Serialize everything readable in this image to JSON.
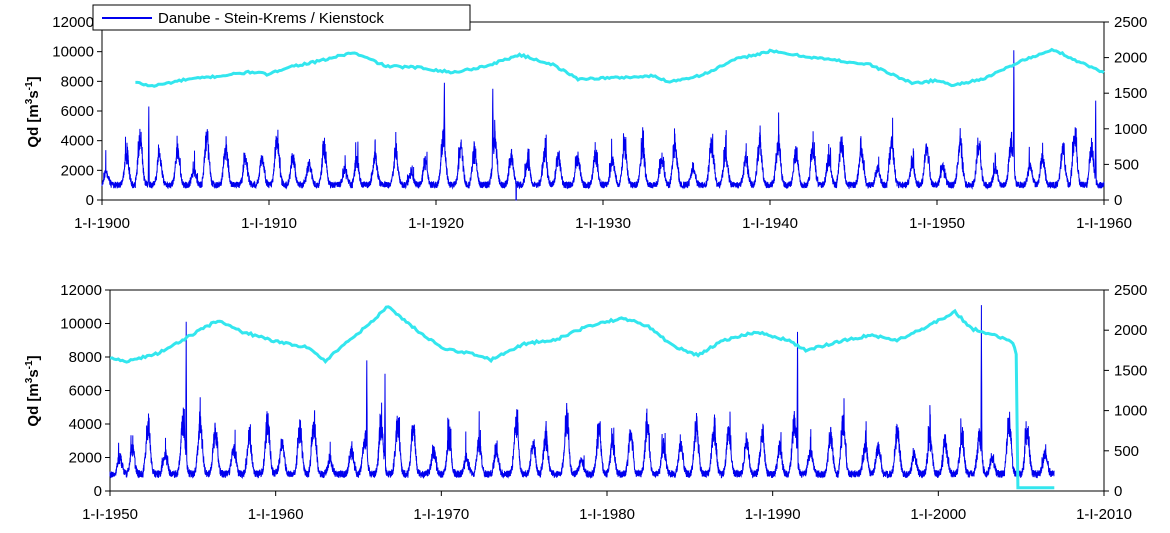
{
  "chart_data": [
    {
      "type": "line",
      "panel": "top",
      "xlabel": "",
      "ylabel": "Qd [m3s-1]",
      "ylabel_parts": {
        "base": "Qd  [m",
        "sup1": "3",
        "mid": "s",
        "sup2": "-1",
        "end": "]"
      },
      "x_range_years": [
        1900,
        1960
      ],
      "x_tick_labels": [
        "1-I-1900",
        "1-I-1910",
        "1-I-1920",
        "1-I-1930",
        "1-I-1940",
        "1-I-1950",
        "1-I-1960"
      ],
      "y_left_range": [
        0,
        12000
      ],
      "y_left_ticks": [
        "0",
        "2000",
        "4000",
        "6000",
        "8000",
        "10000",
        "12000"
      ],
      "y_right_range": [
        0,
        2500
      ],
      "y_right_ticks": [
        "0",
        "500",
        "1000",
        "1500",
        "2000",
        "2500"
      ],
      "grid": false,
      "legend": {
        "placement": "top-left",
        "entries": [
          "Danube - Stein-Krems / Kienstock"
        ]
      },
      "series": [
        {
          "name": "Danube - Stein-Krems / Kienstock",
          "axis": "left",
          "color": "#0000ee",
          "style": "daily discharge, strong annual cycle",
          "base_flow": 1300,
          "typical_annual_peak": 4200,
          "peaks": [
            {
              "x": 1902.8,
              "y": 6300
            },
            {
              "x": 1920.5,
              "y": 7900
            },
            {
              "x": 1923.4,
              "y": 7500
            },
            {
              "x": 1954.6,
              "y": 10100
            },
            {
              "x": 1959.5,
              "y": 6700
            }
          ],
          "minimum": {
            "x": 1924.8,
            "y": 0
          }
        },
        {
          "name": "",
          "axis": "right",
          "color": "#33e6ee",
          "style": "running mean",
          "points": [
            [
              1902.0,
              1650
            ],
            [
              1903.0,
              1600
            ],
            [
              1905.0,
              1690
            ],
            [
              1907.0,
              1740
            ],
            [
              1909.0,
              1800
            ],
            [
              1910.0,
              1760
            ],
            [
              1911.0,
              1860
            ],
            [
              1913.0,
              1950
            ],
            [
              1915.0,
              2070
            ],
            [
              1916.0,
              1980
            ],
            [
              1917.0,
              1880
            ],
            [
              1919.0,
              1860
            ],
            [
              1921.0,
              1790
            ],
            [
              1923.0,
              1880
            ],
            [
              1925.0,
              2040
            ],
            [
              1927.0,
              1900
            ],
            [
              1928.5,
              1700
            ],
            [
              1931.0,
              1720
            ],
            [
              1933.0,
              1740
            ],
            [
              1934.0,
              1660
            ],
            [
              1936.0,
              1760
            ],
            [
              1938.0,
              1980
            ],
            [
              1940.0,
              2090
            ],
            [
              1942.0,
              2020
            ],
            [
              1944.0,
              1960
            ],
            [
              1946.0,
              1900
            ],
            [
              1948.5,
              1640
            ],
            [
              1950.0,
              1680
            ],
            [
              1951.0,
              1610
            ],
            [
              1953.0,
              1720
            ],
            [
              1955.0,
              1950
            ],
            [
              1957.0,
              2110
            ],
            [
              1958.5,
              1940
            ],
            [
              1960.0,
              1790
            ]
          ]
        }
      ]
    },
    {
      "type": "line",
      "panel": "bottom",
      "xlabel": "",
      "ylabel": "Qd [m3s-1]",
      "ylabel_parts": {
        "base": "Qd  [m",
        "sup1": "3",
        "mid": "s",
        "sup2": "-1",
        "end": "]"
      },
      "x_range_years": [
        1950,
        2010
      ],
      "x_tick_labels": [
        "1-I-1950",
        "1-I-1960",
        "1-I-1970",
        "1-I-1980",
        "1-I-1990",
        "1-I-2000",
        "1-I-2010"
      ],
      "y_left_range": [
        0,
        12000
      ],
      "y_left_ticks": [
        "0",
        "2000",
        "4000",
        "6000",
        "8000",
        "10000",
        "12000"
      ],
      "y_right_range": [
        0,
        2500
      ],
      "y_right_ticks": [
        "0",
        "500",
        "1000",
        "1500",
        "2000",
        "2500"
      ],
      "grid": false,
      "series": [
        {
          "name": "Danube - Stein-Krems / Kienstock",
          "axis": "left",
          "color": "#0000ee",
          "style": "daily discharge, strong annual cycle",
          "base_flow": 1300,
          "typical_annual_peak": 4200,
          "end_year": 2007.0,
          "peaks": [
            {
              "x": 1954.6,
              "y": 10100
            },
            {
              "x": 1965.5,
              "y": 7800
            },
            {
              "x": 1966.6,
              "y": 7000
            },
            {
              "x": 1991.5,
              "y": 9500
            },
            {
              "x": 2002.6,
              "y": 11100
            }
          ]
        },
        {
          "name": "",
          "axis": "right",
          "color": "#33e6ee",
          "style": "running mean",
          "points": [
            [
              1950.0,
              1650
            ],
            [
              1951.0,
              1610
            ],
            [
              1953.0,
              1720
            ],
            [
              1955.0,
              1950
            ],
            [
              1956.5,
              2120
            ],
            [
              1958.0,
              1980
            ],
            [
              1960.0,
              1860
            ],
            [
              1962.0,
              1780
            ],
            [
              1963.0,
              1620
            ],
            [
              1964.0,
              1800
            ],
            [
              1965.5,
              2050
            ],
            [
              1966.8,
              2300
            ],
            [
              1968.0,
              2080
            ],
            [
              1970.0,
              1780
            ],
            [
              1972.0,
              1700
            ],
            [
              1973.0,
              1630
            ],
            [
              1975.0,
              1830
            ],
            [
              1977.0,
              1890
            ],
            [
              1979.0,
              2060
            ],
            [
              1981.0,
              2150
            ],
            [
              1982.5,
              2050
            ],
            [
              1984.0,
              1800
            ],
            [
              1985.5,
              1690
            ],
            [
              1987.0,
              1870
            ],
            [
              1989.0,
              1980
            ],
            [
              1991.0,
              1870
            ],
            [
              1992.0,
              1750
            ],
            [
              1994.0,
              1860
            ],
            [
              1996.0,
              1940
            ],
            [
              1997.5,
              1870
            ],
            [
              1999.0,
              2010
            ],
            [
              2001.0,
              2230
            ],
            [
              2002.0,
              2020
            ],
            [
              2004.0,
              1900
            ],
            [
              2004.5,
              1850
            ],
            [
              2004.7,
              1700
            ],
            [
              2004.8,
              40
            ],
            [
              2007.0,
              40
            ]
          ]
        }
      ]
    }
  ]
}
